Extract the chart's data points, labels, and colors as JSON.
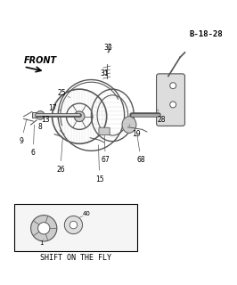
{
  "bg_color": "#ffffff",
  "title_code": "B-18-28",
  "front_label": "FRONT",
  "bottom_label": "SHIFT ON THE FLY",
  "figsize": [
    2.66,
    3.2
  ],
  "dpi": 100
}
